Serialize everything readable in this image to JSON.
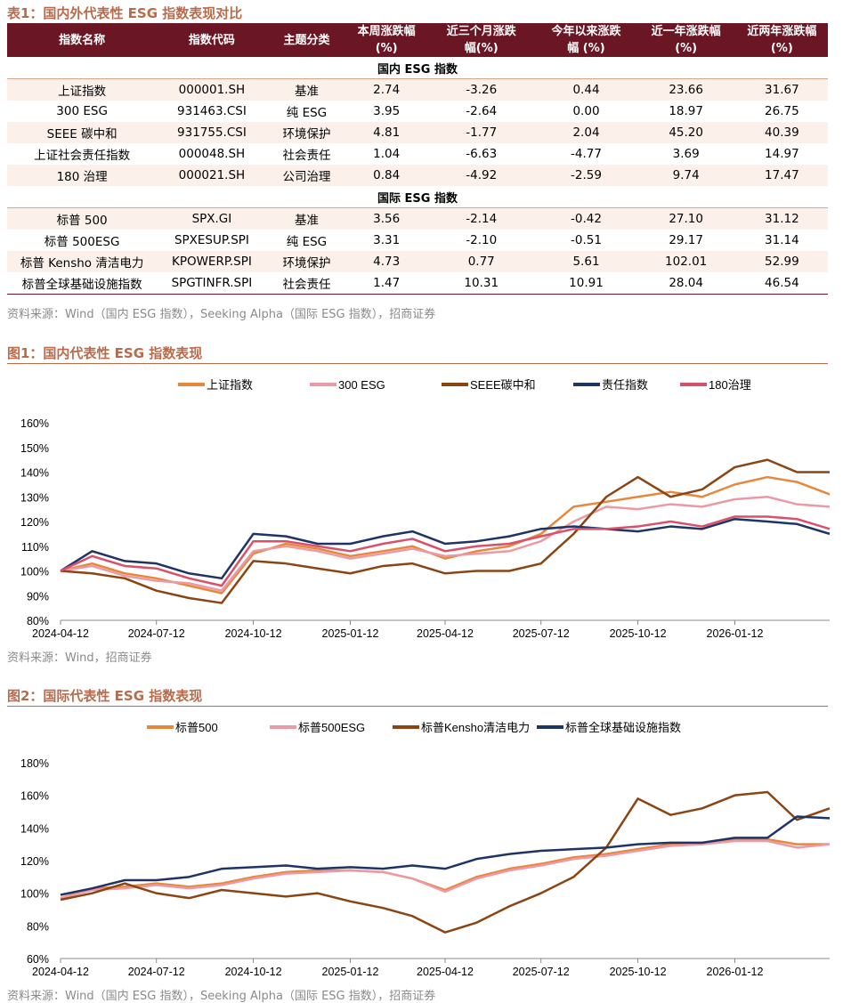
{
  "table": {
    "title": "表1：国内外代表性 ESG 指数表现对比",
    "headers": [
      [
        "指数名称",
        ""
      ],
      [
        "指数代码",
        ""
      ],
      [
        "主题分类",
        ""
      ],
      [
        "本周涨跌幅",
        "(%)"
      ],
      [
        "近三个月涨跌",
        "幅(%)"
      ],
      [
        "今年以来涨跌",
        "幅 (%)"
      ],
      [
        "近一年涨跌幅",
        "(%)"
      ],
      [
        "近两年涨跌幅",
        "(%)"
      ]
    ],
    "sections": [
      {
        "label": "国内 ESG 指数",
        "rows": [
          [
            "上证指数",
            "000001.SH",
            "基准",
            "2.74",
            "-3.26",
            "0.44",
            "23.66",
            "31.67"
          ],
          [
            "300 ESG",
            "931463.CSI",
            "纯 ESG",
            "3.95",
            "-2.64",
            "0.00",
            "18.97",
            "26.75"
          ],
          [
            "SEEE 碳中和",
            "931755.CSI",
            "环境保护",
            "4.81",
            "-1.77",
            "2.04",
            "45.20",
            "40.39"
          ],
          [
            "上证社会责任指数",
            "000048.SH",
            "社会责任",
            "1.04",
            "-6.63",
            "-4.77",
            "3.69",
            "14.97"
          ],
          [
            "180 治理",
            "000021.SH",
            "公司治理",
            "0.84",
            "-4.92",
            "-2.59",
            "9.74",
            "17.47"
          ]
        ]
      },
      {
        "label": "国际 ESG 指数",
        "rows": [
          [
            "标普 500",
            "SPX.GI",
            "基准",
            "3.56",
            "-2.14",
            "-0.42",
            "27.10",
            "31.12"
          ],
          [
            "标普 500ESG",
            "SPXESUP.SPI",
            "纯 ESG",
            "3.31",
            "-2.10",
            "-0.51",
            "29.17",
            "31.14"
          ],
          [
            "标普 Kensho 清洁电力",
            "KPOWERP.SPI",
            "环境保护",
            "4.73",
            "0.77",
            "5.61",
            "102.01",
            "52.99"
          ],
          [
            "标普全球基础设施指数",
            "SPGTINFR.SPI",
            "社会责任",
            "1.47",
            "10.31",
            "10.91",
            "28.04",
            "46.54"
          ]
        ]
      }
    ],
    "source": "资料来源：Wind（国内 ESG 指数），Seeking Alpha（国际 ESG 指数），招商证券"
  },
  "chart_data": [
    {
      "type": "line",
      "title": "图1：国内代表性 ESG 指数表现",
      "source": "资料来源：Wind，招商证券",
      "xticks": [
        "2024-04-12",
        "2024-07-12",
        "2024-10-12",
        "2025-01-12",
        "2025-04-12",
        "2025-07-12",
        "2025-10-12",
        "2026-01-12"
      ],
      "xlim": [
        "2024-04-12",
        "2026-04-12"
      ],
      "ylim": [
        80,
        160
      ],
      "yticks": [
        80,
        90,
        100,
        110,
        120,
        130,
        140,
        150,
        160
      ],
      "yunit": "%",
      "legend": "top",
      "x": [
        "2024-04-12",
        "2024-05-12",
        "2024-06-12",
        "2024-07-12",
        "2024-08-12",
        "2024-09-12",
        "2024-10-12",
        "2024-11-12",
        "2024-12-12",
        "2025-01-12",
        "2025-02-12",
        "2025-03-12",
        "2025-04-12",
        "2025-05-12",
        "2025-06-12",
        "2025-07-12",
        "2025-08-12",
        "2025-09-12",
        "2025-10-12",
        "2025-11-12",
        "2025-12-12",
        "2026-01-12",
        "2026-02-12",
        "2026-03-12",
        "2026-04-12"
      ],
      "series": [
        {
          "name": "上证指数",
          "color": "#e8873a",
          "values": [
            100,
            103,
            99,
            97,
            94,
            91,
            107,
            111,
            109,
            106,
            108,
            110,
            105,
            108,
            110,
            115,
            126,
            128,
            130,
            132,
            130,
            135,
            138,
            136,
            131
          ]
        },
        {
          "name": "300 ESG",
          "color": "#eb9aa4",
          "values": [
            100,
            102,
            98,
            96,
            95,
            92,
            108,
            110,
            108,
            105,
            107,
            109,
            106,
            107,
            108,
            112,
            120,
            126,
            125,
            127,
            126,
            129,
            130,
            127,
            126
          ]
        },
        {
          "name": "SEEE碳中和",
          "color": "#8b4513",
          "values": [
            100,
            99,
            97,
            92,
            89,
            87,
            104,
            103,
            101,
            99,
            102,
            103,
            99,
            100,
            100,
            103,
            115,
            130,
            138,
            130,
            133,
            142,
            145,
            140,
            140
          ]
        },
        {
          "name": "责任指数",
          "color": "#1f3466",
          "values": [
            100,
            108,
            104,
            103,
            99,
            97,
            115,
            114,
            111,
            111,
            114,
            116,
            111,
            112,
            114,
            117,
            118,
            117,
            116,
            118,
            117,
            121,
            120,
            119,
            115
          ]
        },
        {
          "name": "180治理",
          "color": "#d9506a",
          "values": [
            100,
            106,
            102,
            101,
            97,
            94,
            112,
            112,
            110,
            108,
            111,
            113,
            108,
            110,
            111,
            114,
            117,
            117,
            118,
            120,
            118,
            122,
            122,
            121,
            117
          ]
        }
      ]
    },
    {
      "type": "line",
      "title": "图2：国际代表性 ESG 指数表现",
      "source": "资料来源：Wind（国内 ESG 指数），Seeking Alpha（国际 ESG 指数），招商证券",
      "xticks": [
        "2024-04-12",
        "2024-07-12",
        "2024-10-12",
        "2025-01-12",
        "2025-04-12",
        "2025-07-12",
        "2025-10-12",
        "2026-01-12"
      ],
      "xlim": [
        "2024-04-12",
        "2026-04-12"
      ],
      "ylim": [
        60,
        180
      ],
      "yticks": [
        60,
        80,
        100,
        120,
        140,
        160,
        180
      ],
      "yunit": "%",
      "legend": "top",
      "x": [
        "2024-04-12",
        "2024-05-12",
        "2024-06-12",
        "2024-07-12",
        "2024-08-12",
        "2024-09-12",
        "2024-10-12",
        "2024-11-12",
        "2024-12-12",
        "2025-01-12",
        "2025-02-12",
        "2025-03-12",
        "2025-04-12",
        "2025-05-12",
        "2025-06-12",
        "2025-07-12",
        "2025-08-12",
        "2025-09-12",
        "2025-10-12",
        "2025-11-12",
        "2025-12-12",
        "2026-01-12",
        "2026-02-12",
        "2026-03-12",
        "2026-04-12"
      ],
      "series": [
        {
          "name": "标普500",
          "color": "#e8873a",
          "values": [
            97,
            103,
            104,
            106,
            104,
            106,
            110,
            113,
            114,
            114,
            113,
            109,
            102,
            110,
            115,
            118,
            122,
            124,
            127,
            130,
            131,
            133,
            133,
            130,
            130
          ]
        },
        {
          "name": "标普500ESG",
          "color": "#eb9aa4",
          "values": [
            97,
            102,
            103,
            105,
            103,
            105,
            109,
            112,
            113,
            114,
            113,
            109,
            101,
            109,
            114,
            117,
            121,
            123,
            126,
            129,
            130,
            132,
            132,
            128,
            130
          ]
        },
        {
          "name": "标普Kensho清洁电力",
          "color": "#8b4513",
          "values": [
            96,
            100,
            106,
            100,
            97,
            102,
            100,
            98,
            100,
            95,
            91,
            86,
            76,
            82,
            92,
            100,
            110,
            128,
            158,
            148,
            152,
            160,
            162,
            145,
            152
          ]
        },
        {
          "name": "标普全球基础设施指数",
          "color": "#1f3466",
          "values": [
            99,
            103,
            108,
            108,
            110,
            115,
            116,
            117,
            115,
            116,
            115,
            117,
            115,
            121,
            124,
            126,
            127,
            128,
            130,
            131,
            131,
            134,
            134,
            147,
            146
          ]
        }
      ]
    }
  ]
}
